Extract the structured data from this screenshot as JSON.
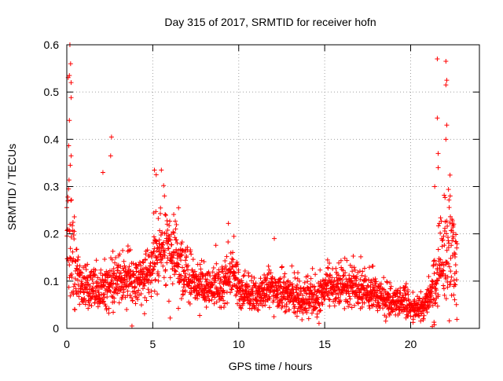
{
  "chart_data": {
    "type": "scatter",
    "title": "Day 315 of 2017, SRMTID for receiver hofn",
    "xlabel": "GPS time / hours",
    "ylabel": "SRMTID / TECUs",
    "xlim": [
      0,
      24
    ],
    "ylim": [
      0,
      0.6
    ],
    "x_ticks": [
      0,
      5,
      10,
      15,
      20
    ],
    "x_tick_labels": [
      "0",
      "5",
      "10",
      "15",
      "20"
    ],
    "y_ticks": [
      0,
      0.1,
      0.2,
      0.3,
      0.4,
      0.5,
      0.6
    ],
    "y_tick_labels": [
      "0",
      "0.1",
      "0.2",
      "0.3",
      "0.4",
      "0.5",
      "0.6"
    ],
    "grid": true,
    "marker": "+",
    "marker_color": "#ff0000",
    "time_step_hours": 0.01,
    "sample_span_hours": [
      0.0,
      22.7
    ],
    "envelope": {
      "x": [
        0.0,
        0.15,
        0.3,
        0.5,
        0.8,
        1.2,
        2.0,
        2.8,
        3.5,
        4.2,
        4.8,
        5.2,
        5.8,
        6.5,
        7.2,
        8.0,
        9.0,
        9.6,
        10.2,
        11.0,
        12.0,
        13.0,
        13.8,
        14.5,
        15.2,
        16.0,
        17.0,
        18.0,
        19.0,
        19.6,
        20.2,
        20.8,
        21.3,
        21.8,
        22.2,
        22.7
      ],
      "mean": [
        0.18,
        0.22,
        0.17,
        0.13,
        0.1,
        0.08,
        0.085,
        0.1,
        0.11,
        0.1,
        0.11,
        0.17,
        0.16,
        0.14,
        0.1,
        0.09,
        0.085,
        0.12,
        0.075,
        0.075,
        0.08,
        0.075,
        0.06,
        0.07,
        0.085,
        0.09,
        0.08,
        0.07,
        0.06,
        0.055,
        0.04,
        0.045,
        0.08,
        0.14,
        0.19,
        0.13
      ],
      "spread": [
        0.1,
        0.14,
        0.1,
        0.06,
        0.04,
        0.035,
        0.035,
        0.045,
        0.05,
        0.045,
        0.045,
        0.07,
        0.07,
        0.06,
        0.04,
        0.035,
        0.035,
        0.05,
        0.03,
        0.03,
        0.035,
        0.035,
        0.03,
        0.035,
        0.04,
        0.04,
        0.035,
        0.03,
        0.03,
        0.03,
        0.02,
        0.02,
        0.05,
        0.09,
        0.12,
        0.08
      ]
    },
    "notable_points": [
      {
        "x": 0.18,
        "y": 0.6
      },
      {
        "x": 0.22,
        "y": 0.56
      },
      {
        "x": 0.15,
        "y": 0.535
      },
      {
        "x": 0.25,
        "y": 0.52
      },
      {
        "x": 0.15,
        "y": 0.44
      },
      {
        "x": 0.25,
        "y": 0.365
      },
      {
        "x": 0.2,
        "y": 0.345
      },
      {
        "x": 2.6,
        "y": 0.405
      },
      {
        "x": 2.55,
        "y": 0.365
      },
      {
        "x": 2.1,
        "y": 0.33
      },
      {
        "x": 5.1,
        "y": 0.335
      },
      {
        "x": 5.5,
        "y": 0.335
      },
      {
        "x": 5.2,
        "y": 0.325
      },
      {
        "x": 6.5,
        "y": 0.255
      },
      {
        "x": 9.4,
        "y": 0.222
      },
      {
        "x": 21.55,
        "y": 0.57
      },
      {
        "x": 21.55,
        "y": 0.445
      },
      {
        "x": 22.05,
        "y": 0.565
      },
      {
        "x": 22.1,
        "y": 0.525
      },
      {
        "x": 22.05,
        "y": 0.515
      },
      {
        "x": 22.1,
        "y": 0.43
      },
      {
        "x": 22.05,
        "y": 0.4
      },
      {
        "x": 21.6,
        "y": 0.37
      },
      {
        "x": 21.6,
        "y": 0.34
      },
      {
        "x": 22.3,
        "y": 0.28
      },
      {
        "x": 21.4,
        "y": 0.3
      }
    ],
    "noise_seed": 31517
  }
}
